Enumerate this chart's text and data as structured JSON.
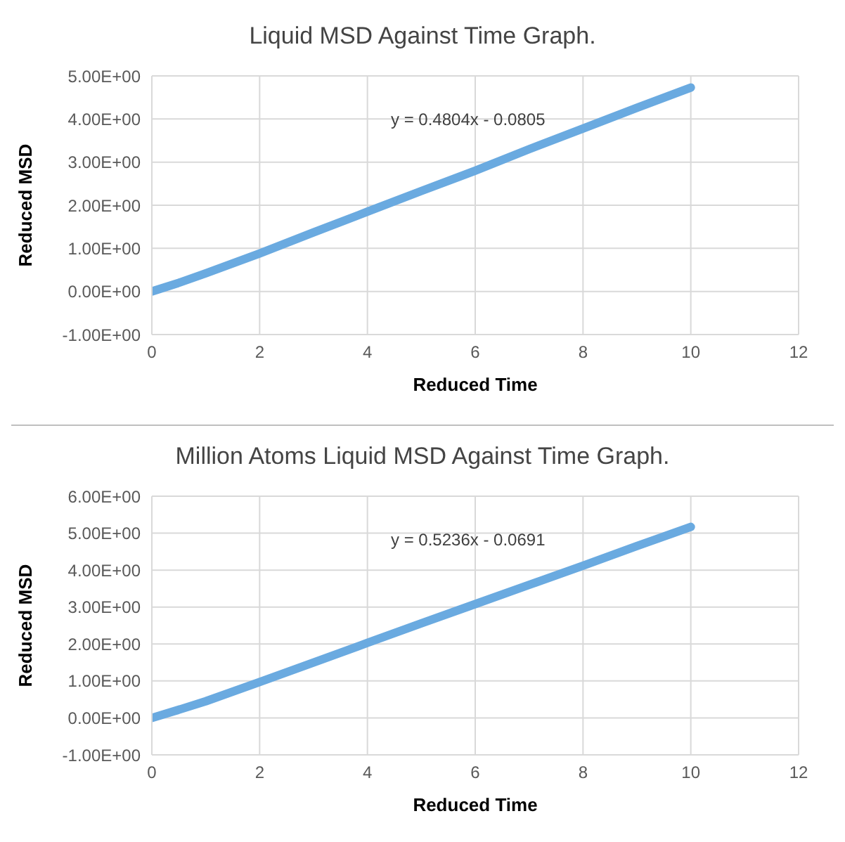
{
  "chart_data": [
    {
      "type": "line",
      "title": "Liquid MSD Against Time Graph.",
      "xlabel": "Reduced Time",
      "ylabel": "Reduced MSD",
      "annotations": [
        "y = 0.4804x - 0.0805"
      ],
      "marker": "none",
      "grid": true,
      "xlim": [
        0,
        12
      ],
      "xticks": [
        0,
        2,
        4,
        6,
        8,
        10,
        12
      ],
      "ylim": [
        -1,
        5
      ],
      "yticks": [
        {
          "value": -1,
          "label": "-1.00E+00"
        },
        {
          "value": 0,
          "label": "0.00E+00"
        },
        {
          "value": 1,
          "label": "1.00E+00"
        },
        {
          "value": 2,
          "label": "2.00E+00"
        },
        {
          "value": 3,
          "label": "3.00E+00"
        },
        {
          "value": 4,
          "label": "4.00E+00"
        },
        {
          "value": 5,
          "label": "5.00E+00"
        }
      ],
      "series": [
        {
          "color": "#6aaae0",
          "x": [
            0,
            0.5,
            1,
            2,
            3,
            4,
            5,
            6,
            7,
            8,
            9,
            10
          ],
          "values": [
            0,
            0.2,
            0.42,
            0.88,
            1.37,
            1.85,
            2.33,
            2.8,
            3.3,
            3.78,
            4.26,
            4.73
          ]
        }
      ]
    },
    {
      "type": "line",
      "title": "Million Atoms Liquid MSD Against Time Graph.",
      "xlabel": "Reduced Time",
      "ylabel": "Reduced MSD",
      "annotations": [
        "y = 0.5236x - 0.0691"
      ],
      "marker": "none",
      "grid": true,
      "xlim": [
        0,
        12
      ],
      "xticks": [
        0,
        2,
        4,
        6,
        8,
        10,
        12
      ],
      "ylim": [
        -1,
        6
      ],
      "yticks": [
        {
          "value": -1,
          "label": "-1.00E+00"
        },
        {
          "value": 0,
          "label": "0.00E+00"
        },
        {
          "value": 1,
          "label": "1.00E+00"
        },
        {
          "value": 2,
          "label": "2.00E+00"
        },
        {
          "value": 3,
          "label": "3.00E+00"
        },
        {
          "value": 4,
          "label": "4.00E+00"
        },
        {
          "value": 5,
          "label": "5.00E+00"
        },
        {
          "value": 6,
          "label": "6.00E+00"
        }
      ],
      "series": [
        {
          "color": "#6aaae0",
          "x": [
            0,
            0.5,
            1,
            2,
            3,
            4,
            5,
            6,
            7,
            8,
            9,
            10
          ],
          "values": [
            0,
            0.22,
            0.45,
            0.97,
            1.5,
            2.03,
            2.56,
            3.08,
            3.6,
            4.12,
            4.65,
            5.17
          ]
        }
      ]
    }
  ]
}
